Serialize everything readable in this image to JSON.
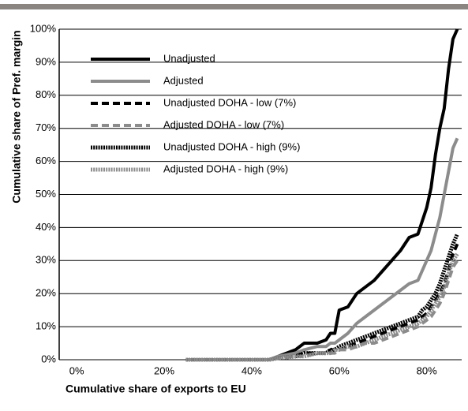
{
  "chart_data": {
    "type": "line",
    "xlabel": "Cumulative share of exports to EU",
    "ylabel": "Cumulative share of Pref. margin",
    "x": [
      25,
      44,
      46,
      50,
      52,
      55,
      57,
      58,
      59,
      60,
      62,
      64,
      66,
      68,
      70,
      72,
      74,
      76,
      78,
      79,
      80,
      81,
      82,
      83,
      84,
      85,
      86,
      87
    ],
    "series": [
      {
        "name": "Unadjusted",
        "color": "#000000",
        "line_style": "solid",
        "values": [
          0,
          0,
          1,
          3,
          5,
          5,
          6,
          8,
          8,
          15,
          16,
          20,
          22,
          24,
          27,
          30,
          33,
          37,
          38,
          42,
          46,
          52,
          62,
          70,
          76,
          88,
          97,
          100
        ]
      },
      {
        "name": "Adjusted",
        "color": "#8c8c8c",
        "line_style": "solid",
        "values": [
          0,
          0,
          1,
          2,
          3,
          4,
          4,
          5,
          5,
          6,
          8,
          11,
          13,
          15,
          17,
          19,
          21,
          23,
          24,
          27,
          30,
          33,
          38,
          43,
          50,
          57,
          64,
          67
        ]
      },
      {
        "name": "Unadjusted DOHA - low (7%)",
        "color": "#000000",
        "line_style": "dashed",
        "values": [
          0,
          0,
          0.5,
          1,
          2,
          2,
          2,
          3,
          3,
          3,
          4,
          5,
          6,
          7,
          8,
          9,
          10,
          11,
          12,
          13,
          14,
          16,
          18,
          20,
          23,
          27,
          32,
          35
        ]
      },
      {
        "name": "Adjusted DOHA - low (7%)",
        "color": "#8c8c8c",
        "line_style": "dashed",
        "values": [
          0,
          0,
          0.5,
          1,
          1,
          2,
          2,
          2,
          2,
          3,
          3,
          4,
          5,
          5,
          6,
          7,
          8,
          9,
          10,
          11,
          12,
          13,
          15,
          17,
          20,
          24,
          28,
          30
        ]
      },
      {
        "name": "Unadjusted DOHA - high (9%)",
        "color": "#000000",
        "line_style": "dotted",
        "values": [
          0,
          0,
          0.5,
          1,
          2,
          2,
          2,
          3,
          3,
          4,
          5,
          6,
          7,
          8,
          9,
          10,
          11,
          12,
          13,
          15,
          16,
          18,
          20,
          23,
          27,
          31,
          35,
          38
        ]
      },
      {
        "name": "Adjusted DOHA - high (9%)",
        "color": "#8c8c8c",
        "line_style": "dotted",
        "values": [
          0,
          0,
          0.5,
          1,
          1,
          2,
          2,
          2,
          3,
          3,
          4,
          4,
          5,
          6,
          7,
          8,
          9,
          10,
          11,
          12,
          13,
          15,
          17,
          19,
          22,
          26,
          30,
          32
        ]
      }
    ],
    "xlim": [
      -4,
      88
    ],
    "xticks": [
      {
        "value": 0,
        "label": "0%"
      },
      {
        "value": 20,
        "label": "20%"
      },
      {
        "value": 40,
        "label": "40%"
      },
      {
        "value": 60,
        "label": "60%"
      },
      {
        "value": 80,
        "label": "80%"
      }
    ],
    "ylim": [
      0,
      100
    ],
    "yticks": [
      {
        "value": 0,
        "label": "0%"
      },
      {
        "value": 10,
        "label": "10%"
      },
      {
        "value": 20,
        "label": "20%"
      },
      {
        "value": 30,
        "label": "30%"
      },
      {
        "value": 40,
        "label": "40%"
      },
      {
        "value": 50,
        "label": "50%"
      },
      {
        "value": 60,
        "label": "60%"
      },
      {
        "value": 70,
        "label": "70%"
      },
      {
        "value": 80,
        "label": "80%"
      },
      {
        "value": 90,
        "label": "90%"
      },
      {
        "value": 100,
        "label": "100%"
      }
    ],
    "grid": true,
    "legend": "upper left"
  }
}
